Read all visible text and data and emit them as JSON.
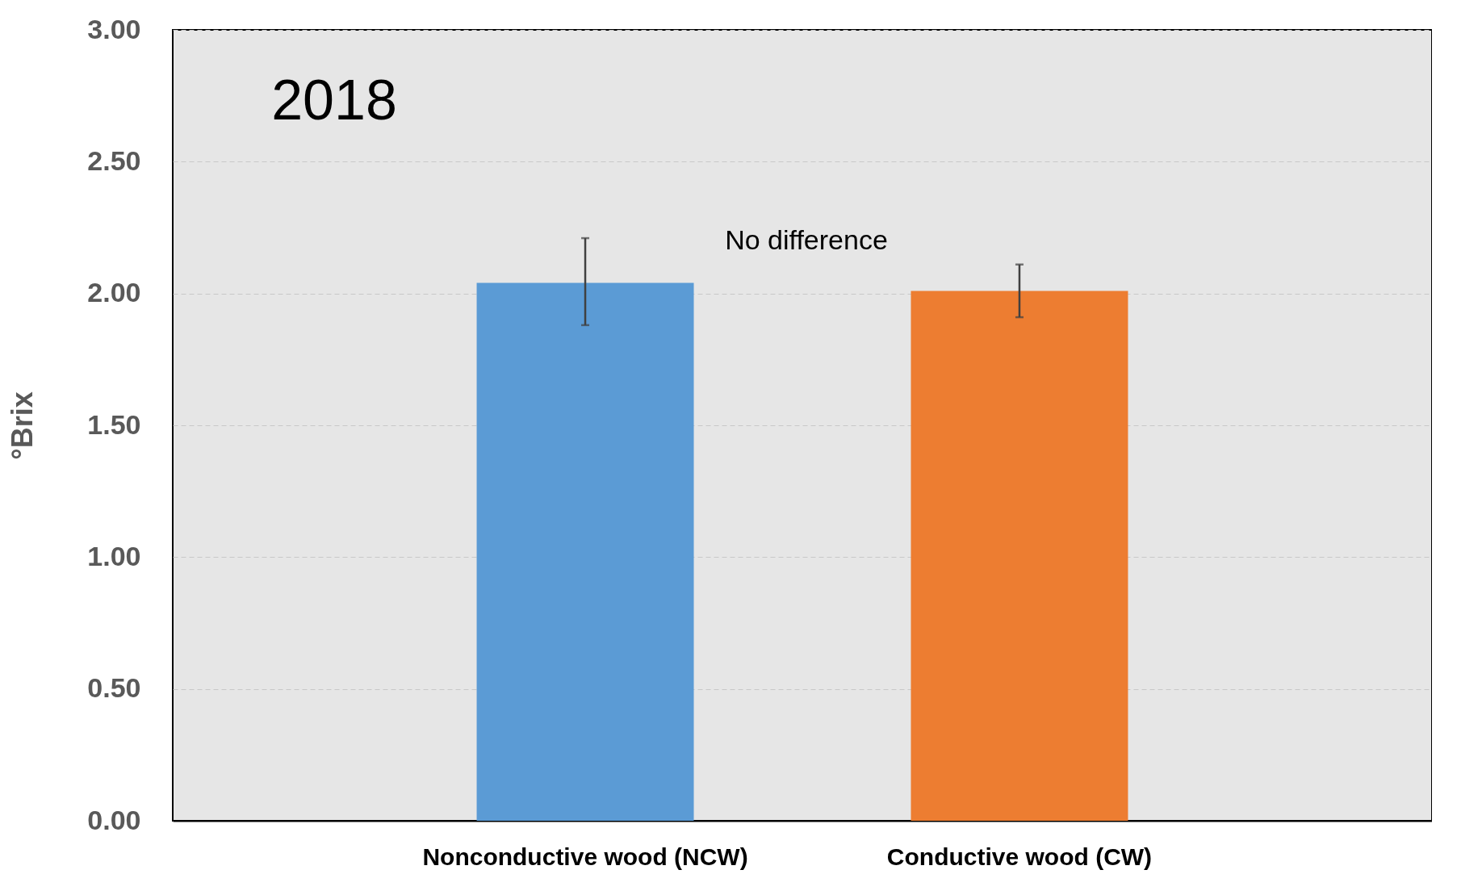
{
  "chart_data": {
    "type": "bar",
    "ylabel": "°Brix",
    "categories": [
      "Nonconductive wood (NCW)",
      "Conductive wood (CW)"
    ],
    "values": [
      2.04,
      2.01
    ],
    "colors": [
      "#5b9bd5",
      "#ed7d31"
    ],
    "errors": [
      [
        1.88,
        2.21
      ],
      [
        1.91,
        2.11
      ]
    ],
    "ylim": [
      0,
      3
    ],
    "yticks": [
      {
        "value": 0,
        "label": "0.00"
      },
      {
        "value": 0.5,
        "label": "0.50"
      },
      {
        "value": 1,
        "label": "1.00"
      },
      {
        "value": 1.5,
        "label": "1.50"
      },
      {
        "value": 2,
        "label": "2.00"
      },
      {
        "value": 2.5,
        "label": "2.50"
      },
      {
        "value": 3,
        "label": "3.00"
      }
    ],
    "grid": "y",
    "annotations": [
      "2018",
      "No difference"
    ]
  }
}
